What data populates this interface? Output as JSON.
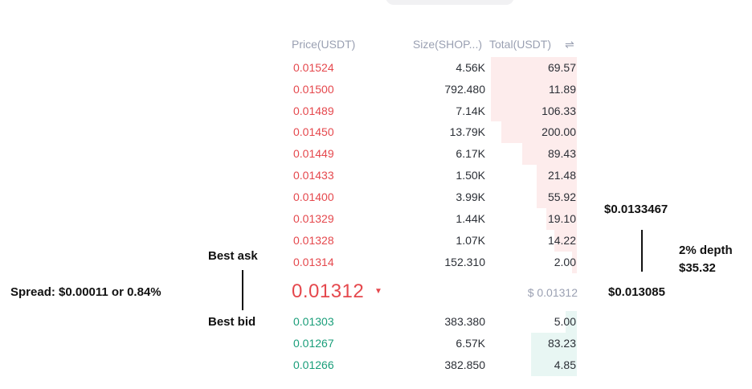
{
  "header": {
    "price_label": "Price(USDT)",
    "size_label": "Size(SHOP...)",
    "total_label": "Total(USDT)",
    "swap_icon": "⇌"
  },
  "asks": [
    {
      "price": "0.01524",
      "size": "4.56K",
      "total": "69.57"
    },
    {
      "price": "0.01500",
      "size": "792.480",
      "total": "11.89"
    },
    {
      "price": "0.01489",
      "size": "7.14K",
      "total": "106.33"
    },
    {
      "price": "0.01450",
      "size": "13.79K",
      "total": "200.00"
    },
    {
      "price": "0.01449",
      "size": "6.17K",
      "total": "89.43"
    },
    {
      "price": "0.01433",
      "size": "1.50K",
      "total": "21.48"
    },
    {
      "price": "0.01400",
      "size": "3.99K",
      "total": "55.92"
    },
    {
      "price": "0.01329",
      "size": "1.44K",
      "total": "19.10"
    },
    {
      "price": "0.01328",
      "size": "1.07K",
      "total": "14.22"
    },
    {
      "price": "0.01314",
      "size": "152.310",
      "total": "2.00"
    }
  ],
  "mid": {
    "price": "0.01312",
    "arrow": "▼",
    "usd": "$ 0.01312"
  },
  "bids": [
    {
      "price": "0.01303",
      "size": "383.380",
      "total": "5.00"
    },
    {
      "price": "0.01267",
      "size": "6.57K",
      "total": "83.23"
    },
    {
      "price": "0.01266",
      "size": "382.850",
      "total": "4.85"
    }
  ],
  "annotations": {
    "best_ask": "Best ask",
    "best_bid": "Best bid",
    "spread": "Spread: $0.00011 or 0.84%",
    "upper_price": "$0.0133467",
    "lower_price": "$0.013085",
    "depth_line1": "2% depth",
    "depth_line2": "$35.32"
  },
  "colors": {
    "ask": "#e5484d",
    "bid": "#1a9e7a",
    "muted": "#9aa0b2",
    "ask_depth_bg": "#fdecec",
    "bid_depth_bg": "#e8f6f3"
  }
}
